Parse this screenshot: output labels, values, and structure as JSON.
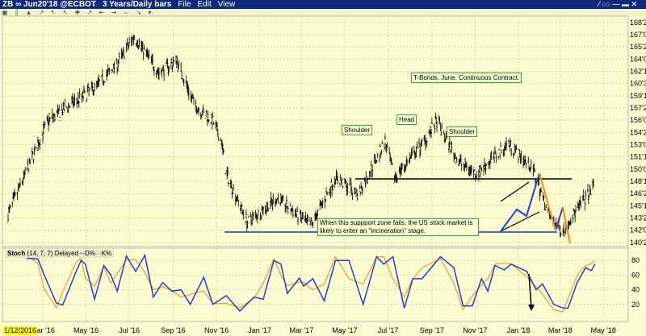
{
  "window": {
    "title": "ZB ∞ Jun20'18 @ECBOT",
    "timeframe": "3 Years/Daily bars",
    "menu": [
      "File",
      "Edit",
      "View"
    ],
    "controls": "⁄ ○○ — ▬ ✕",
    "toolbar_icons": "▣ ║ ▲ ↗ ↖ ↖ ✚ ↗ ⇤ ⇥ ⇔ ↘ ▾"
  },
  "annotations": {
    "title": "T-Bonds. June. Continuous Contract.",
    "left_shoulder": "Shoulder",
    "head": "Head",
    "right_shoulder": "Shoulder",
    "support_note": "When this suppport zone fails, the US stock market is likely to enter an \"incineration\" stage."
  },
  "stoch_legend": {
    "name": "Stoch",
    "params": "(14, 7, 7) Delayed",
    "d": "D%",
    "k": "K%"
  },
  "start_date": "1/12/2016",
  "colors": {
    "background": "#fbfbd0",
    "bars": "#000000",
    "d_line": "#1f3fd6",
    "k_line": "#ff9a1a",
    "neckline": "#000000",
    "support": "#2030d0",
    "shoulder_box": "#22b14c"
  },
  "chart_data": [
    {
      "type": "ohlc",
      "title": "",
      "ylim": [
        140.1,
        169.55
      ],
      "grid": true,
      "y_ticks": [
        {
          "v": 168.75,
          "l": "168'240"
        },
        {
          "v": 167.1875,
          "l": "167'060"
        },
        {
          "v": 165.625,
          "l": "165'200"
        },
        {
          "v": 164.0625,
          "l": "164'020"
        },
        {
          "v": 162.5,
          "l": "162'160"
        },
        {
          "v": 160.9375,
          "l": "160'300"
        },
        {
          "v": 159.375,
          "l": "159'120"
        },
        {
          "v": 157.8125,
          "l": "157'260"
        },
        {
          "v": 156.25,
          "l": "156'080"
        },
        {
          "v": 154.6875,
          "l": "154'220"
        },
        {
          "v": 153.125,
          "l": "153'040"
        },
        {
          "v": 151.5625,
          "l": "151'180"
        },
        {
          "v": 150,
          "l": "150'000"
        },
        {
          "v": 148.4375,
          "l": "148'140"
        },
        {
          "v": 146.875,
          "l": "146'280"
        },
        {
          "v": 145.3125,
          "l": "145'100"
        },
        {
          "v": 143.75,
          "l": "143'240"
        },
        {
          "v": 142.1875,
          "l": "142'060"
        },
        {
          "v": 140.625,
          "l": "140'200"
        }
      ],
      "x_ticks": [
        {
          "d": "2016-03-01",
          "l": "Mar '16"
        },
        {
          "d": "2016-05-01",
          "l": "May '16"
        },
        {
          "d": "2016-07-01",
          "l": "Jul '16"
        },
        {
          "d": "2016-09-01",
          "l": "Sep '16"
        },
        {
          "d": "2016-11-01",
          "l": "Nov '16"
        },
        {
          "d": "2017-01-01",
          "l": "Jan '17"
        },
        {
          "d": "2017-03-01",
          "l": "Mar '17"
        },
        {
          "d": "2017-05-01",
          "l": "May '17"
        },
        {
          "d": "2017-07-01",
          "l": "Jul '17"
        },
        {
          "d": "2017-09-01",
          "l": "Sep '17"
        },
        {
          "d": "2017-11-01",
          "l": "Nov '17"
        },
        {
          "d": "2018-01-01",
          "l": "Jan '18"
        },
        {
          "d": "2018-03-01",
          "l": "Mar '18"
        },
        {
          "d": "2018-05-01",
          "l": "May '18"
        }
      ],
      "xlim": [
        "2016-01-04",
        "2018-06-05"
      ],
      "close_path": [
        [
          "2016-01-12",
          144.2
        ],
        [
          "2016-02-13",
          151
        ],
        [
          "2016-03-08",
          156.1
        ],
        [
          "2016-05-12",
          160.3
        ],
        [
          "2016-06-14",
          163.4
        ],
        [
          "2016-07-08",
          167
        ],
        [
          "2016-08-12",
          162.3
        ],
        [
          "2016-09-06",
          163.9
        ],
        [
          "2016-10-01",
          158.2
        ],
        [
          "2016-10-27",
          156.1
        ],
        [
          "2016-11-08",
          153.5
        ],
        [
          "2016-11-15",
          149.4
        ],
        [
          "2016-12-15",
          143.2
        ],
        [
          "2017-01-26",
          146.3
        ],
        [
          "2017-03-14",
          142.7
        ],
        [
          "2017-04-18",
          148.9
        ],
        [
          "2017-05-20",
          146.8
        ],
        [
          "2017-06-27",
          153.5
        ],
        [
          "2017-07-10",
          148.9
        ],
        [
          "2017-08-17",
          153
        ],
        [
          "2017-09-08",
          156.1
        ],
        [
          "2017-10-08",
          151
        ],
        [
          "2017-11-03",
          149.4
        ],
        [
          "2017-12-18",
          153.3
        ],
        [
          "2018-01-21",
          150
        ],
        [
          "2018-02-15",
          143.7
        ],
        [
          "2018-03-04",
          142.2
        ],
        [
          "2018-04-18",
          147.8
        ]
      ]
    },
    {
      "type": "line",
      "title": "Stoch",
      "ylim": [
        0,
        100
      ],
      "y_ticks": [
        20,
        40,
        60,
        80
      ],
      "series": [
        {
          "name": "D%",
          "values": [
            [
              "2016-02-07",
              83
            ],
            [
              "2016-02-23",
              82
            ],
            [
              "2016-03-03",
              60
            ],
            [
              "2016-03-20",
              22
            ],
            [
              "2016-03-29",
              19
            ],
            [
              "2016-04-17",
              65
            ],
            [
              "2016-04-24",
              80
            ],
            [
              "2016-04-30",
              75
            ],
            [
              "2016-05-13",
              27
            ],
            [
              "2016-05-26",
              73
            ],
            [
              "2016-06-05",
              60
            ],
            [
              "2016-06-14",
              38
            ],
            [
              "2016-06-27",
              86
            ],
            [
              "2016-07-10",
              65
            ],
            [
              "2016-07-23",
              87
            ],
            [
              "2016-08-04",
              30
            ],
            [
              "2016-08-17",
              50
            ],
            [
              "2016-08-30",
              38
            ],
            [
              "2016-09-12",
              40
            ],
            [
              "2016-09-25",
              20
            ],
            [
              "2016-10-14",
              57
            ],
            [
              "2016-10-27",
              20
            ],
            [
              "2016-11-15",
              32
            ],
            [
              "2016-12-04",
              11
            ],
            [
              "2016-12-24",
              30
            ],
            [
              "2017-01-06",
              27
            ],
            [
              "2017-01-21",
              80
            ],
            [
              "2017-01-31",
              75
            ],
            [
              "2017-02-09",
              35
            ],
            [
              "2017-02-26",
              56
            ],
            [
              "2017-03-04",
              45
            ],
            [
              "2017-03-17",
              55
            ],
            [
              "2017-04-02",
              25
            ],
            [
              "2017-04-18",
              80
            ],
            [
              "2017-05-07",
              80
            ],
            [
              "2017-05-27",
              20
            ],
            [
              "2017-06-15",
              85
            ],
            [
              "2017-06-25",
              75
            ],
            [
              "2017-07-08",
              85
            ],
            [
              "2017-07-24",
              15
            ],
            [
              "2017-08-05",
              55
            ],
            [
              "2017-08-18",
              55
            ],
            [
              "2017-09-13",
              85
            ],
            [
              "2017-10-02",
              70
            ],
            [
              "2017-10-15",
              18
            ],
            [
              "2017-10-28",
              18
            ],
            [
              "2017-11-10",
              55
            ],
            [
              "2017-11-19",
              38
            ],
            [
              "2017-11-29",
              73
            ],
            [
              "2017-12-12",
              67
            ],
            [
              "2017-12-22",
              75
            ],
            [
              "2018-01-13",
              65
            ],
            [
              "2018-01-26",
              40
            ],
            [
              "2018-02-04",
              48
            ],
            [
              "2018-02-20",
              20
            ],
            [
              "2018-03-05",
              15
            ],
            [
              "2018-03-12",
              15
            ],
            [
              "2018-03-25",
              50
            ],
            [
              "2018-04-06",
              70
            ],
            [
              "2018-04-14",
              66
            ],
            [
              "2018-04-19",
              75
            ]
          ]
        },
        {
          "name": "K%",
          "derived": "leads D%"
        }
      ]
    }
  ]
}
